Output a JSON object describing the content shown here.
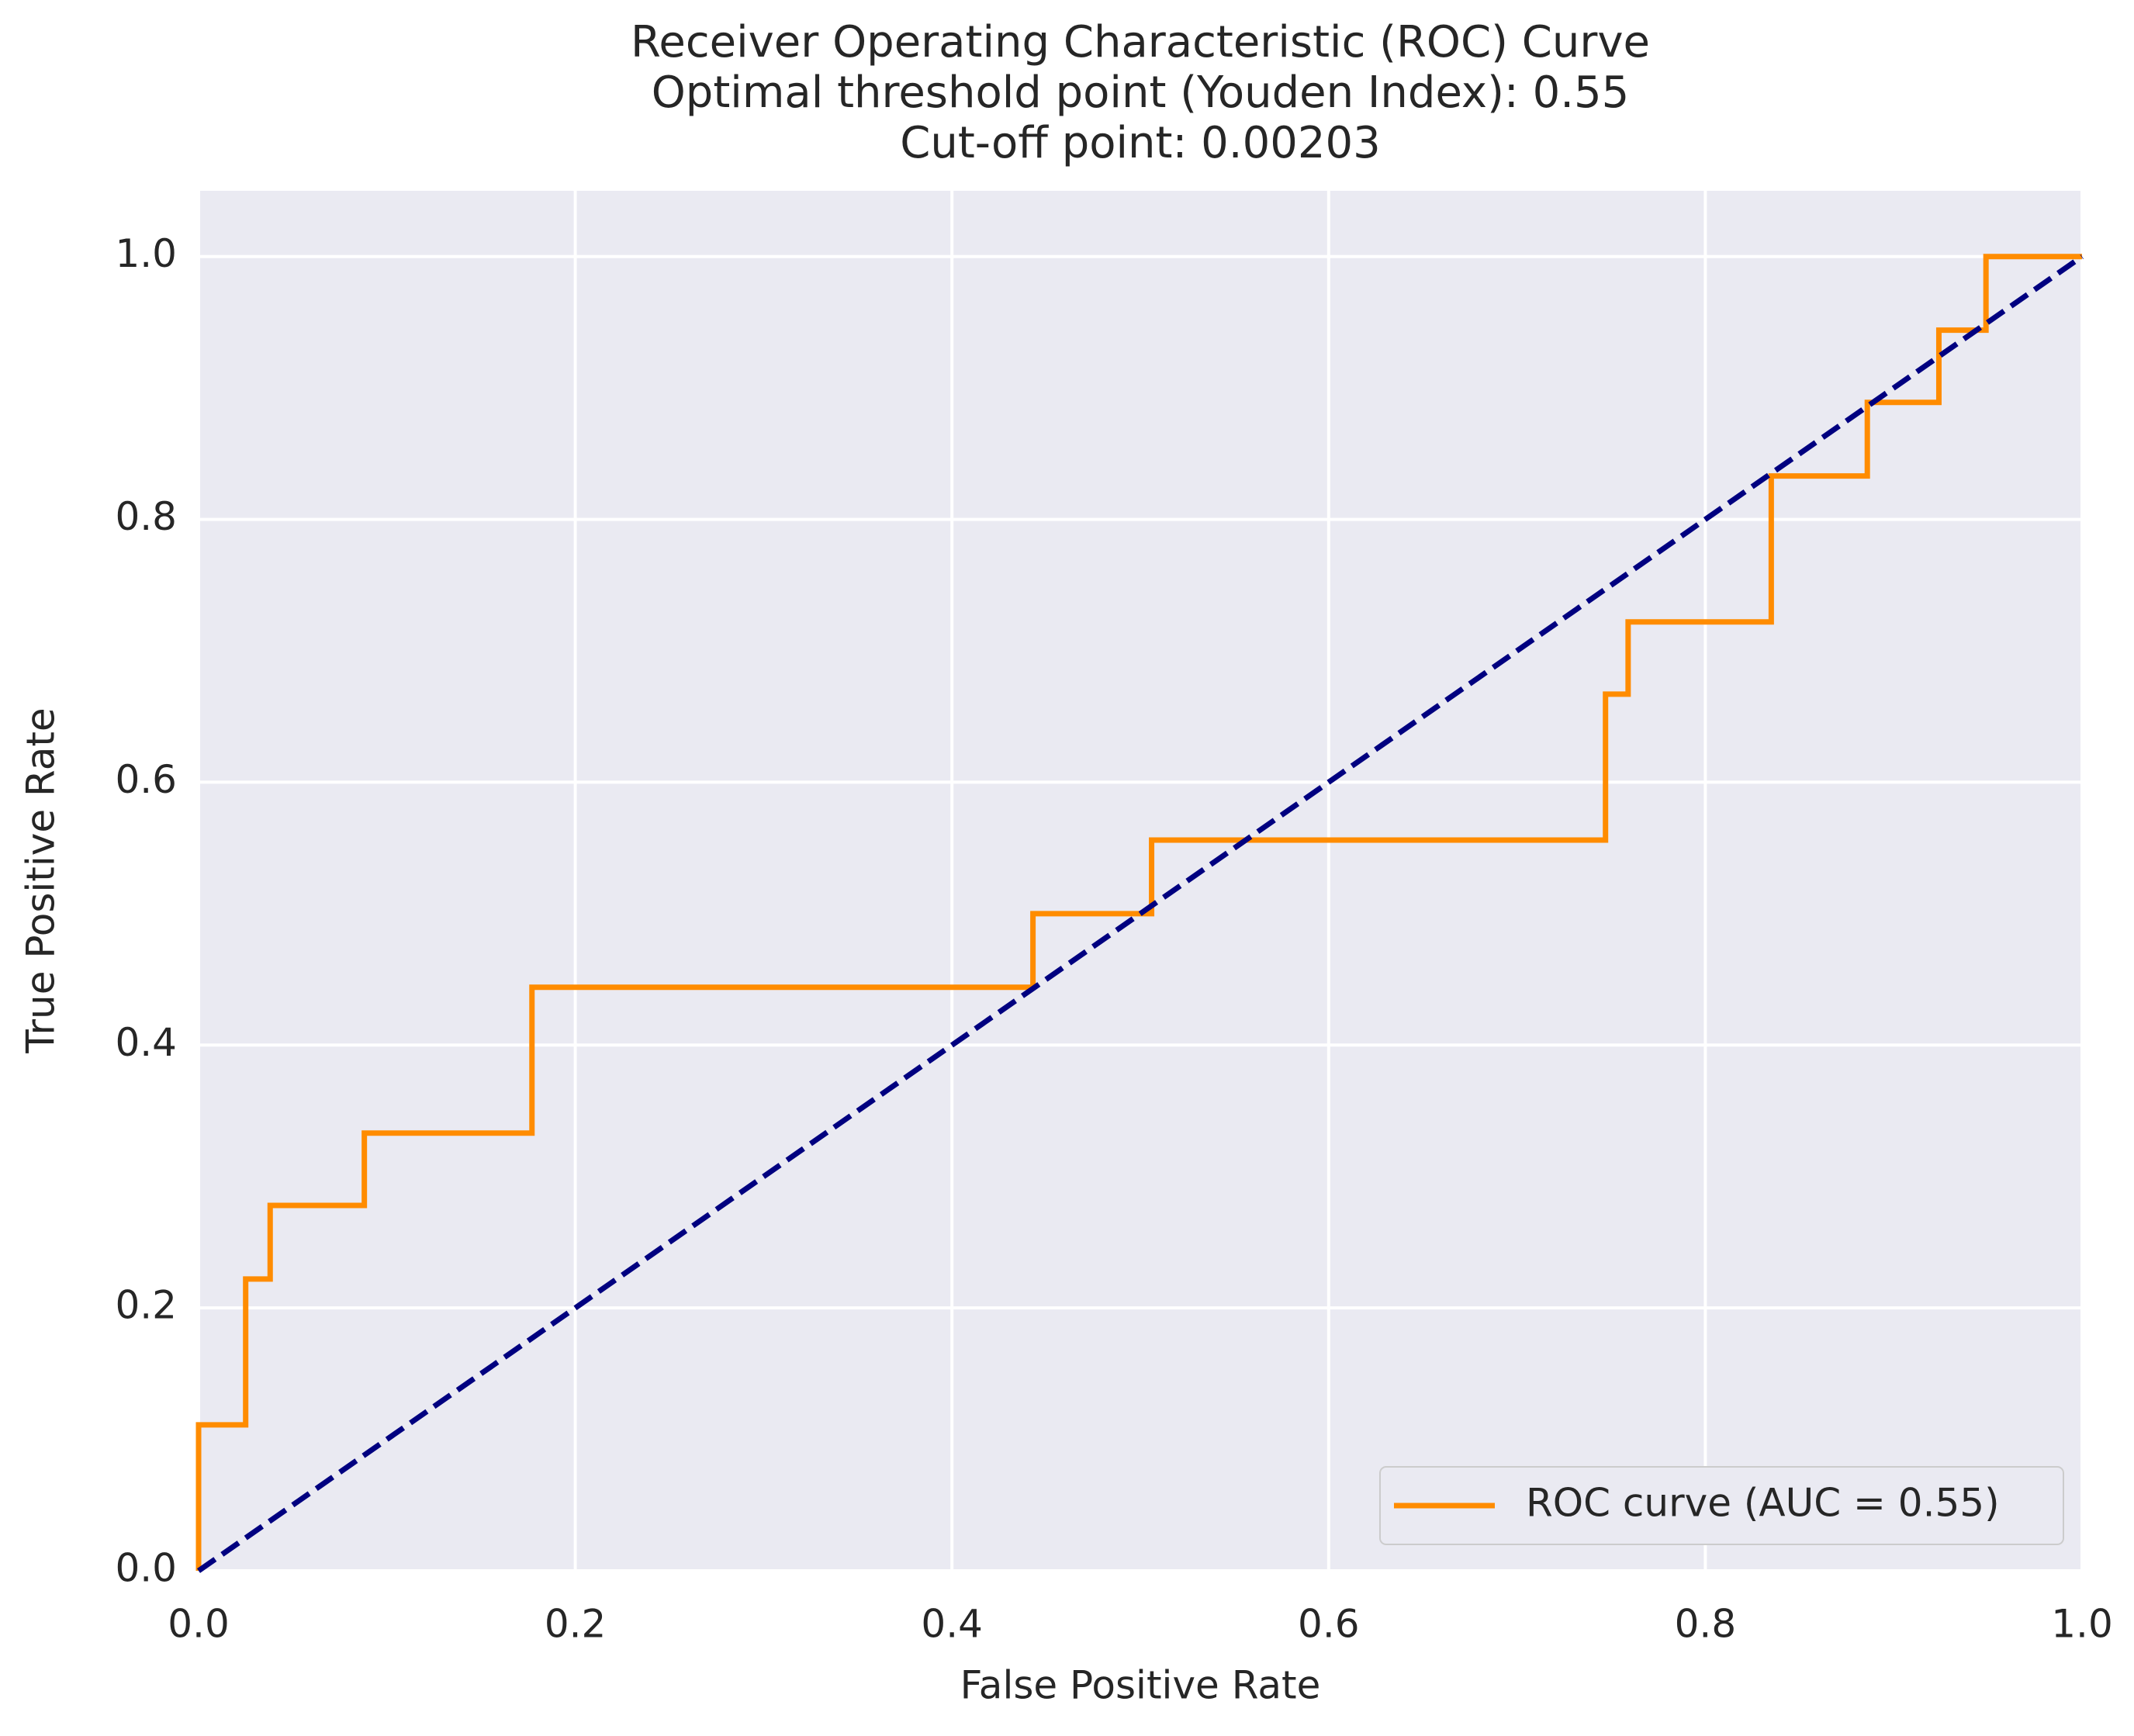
{
  "chart_data": {
    "type": "line",
    "title": [
      "Receiver Operating Characteristic (ROC) Curve",
      "Optimal threshold point (Youden Index): 0.55",
      "Cut-off point: 0.00203"
    ],
    "x_label": "False Positive Rate",
    "y_label": "True Positive Rate",
    "xlim": [
      0,
      1
    ],
    "ylim": [
      0,
      1.05
    ],
    "xticks": [
      {
        "value": 0,
        "label": "0.0"
      },
      0.2,
      0.4,
      0.6,
      0.8,
      {
        "value": 1,
        "label": "1.0"
      }
    ],
    "yticks": [
      {
        "value": 0,
        "label": "0.0"
      },
      0.2,
      0.4,
      0.6,
      0.8,
      {
        "value": 1,
        "label": "1.0"
      }
    ],
    "grid": true,
    "legend": "lower right",
    "series": [
      {
        "name": "ROC curve (AUC = 0.55)",
        "color": "#ff8c00",
        "linestyle": "solid",
        "x": [
          0,
          0,
          0.025,
          0.025,
          0.038,
          0.038,
          0.088,
          0.088,
          0.177,
          0.177,
          0.443,
          0.443,
          0.506,
          0.506,
          0.747,
          0.747,
          0.759,
          0.759,
          0.835,
          0.835,
          0.886,
          0.886,
          0.924,
          0.924,
          0.949,
          0.949,
          1
        ],
        "values": [
          0,
          0.111,
          0.111,
          0.222,
          0.222,
          0.278,
          0.278,
          0.333,
          0.333,
          0.444,
          0.444,
          0.5,
          0.5,
          0.556,
          0.556,
          0.667,
          0.667,
          0.722,
          0.722,
          0.833,
          0.833,
          0.889,
          0.889,
          0.944,
          0.944,
          1,
          1
        ]
      },
      {
        "color": "#000080",
        "linestyle": "dashed",
        "x": [
          0,
          1
        ],
        "values": [
          0,
          1
        ]
      }
    ]
  }
}
